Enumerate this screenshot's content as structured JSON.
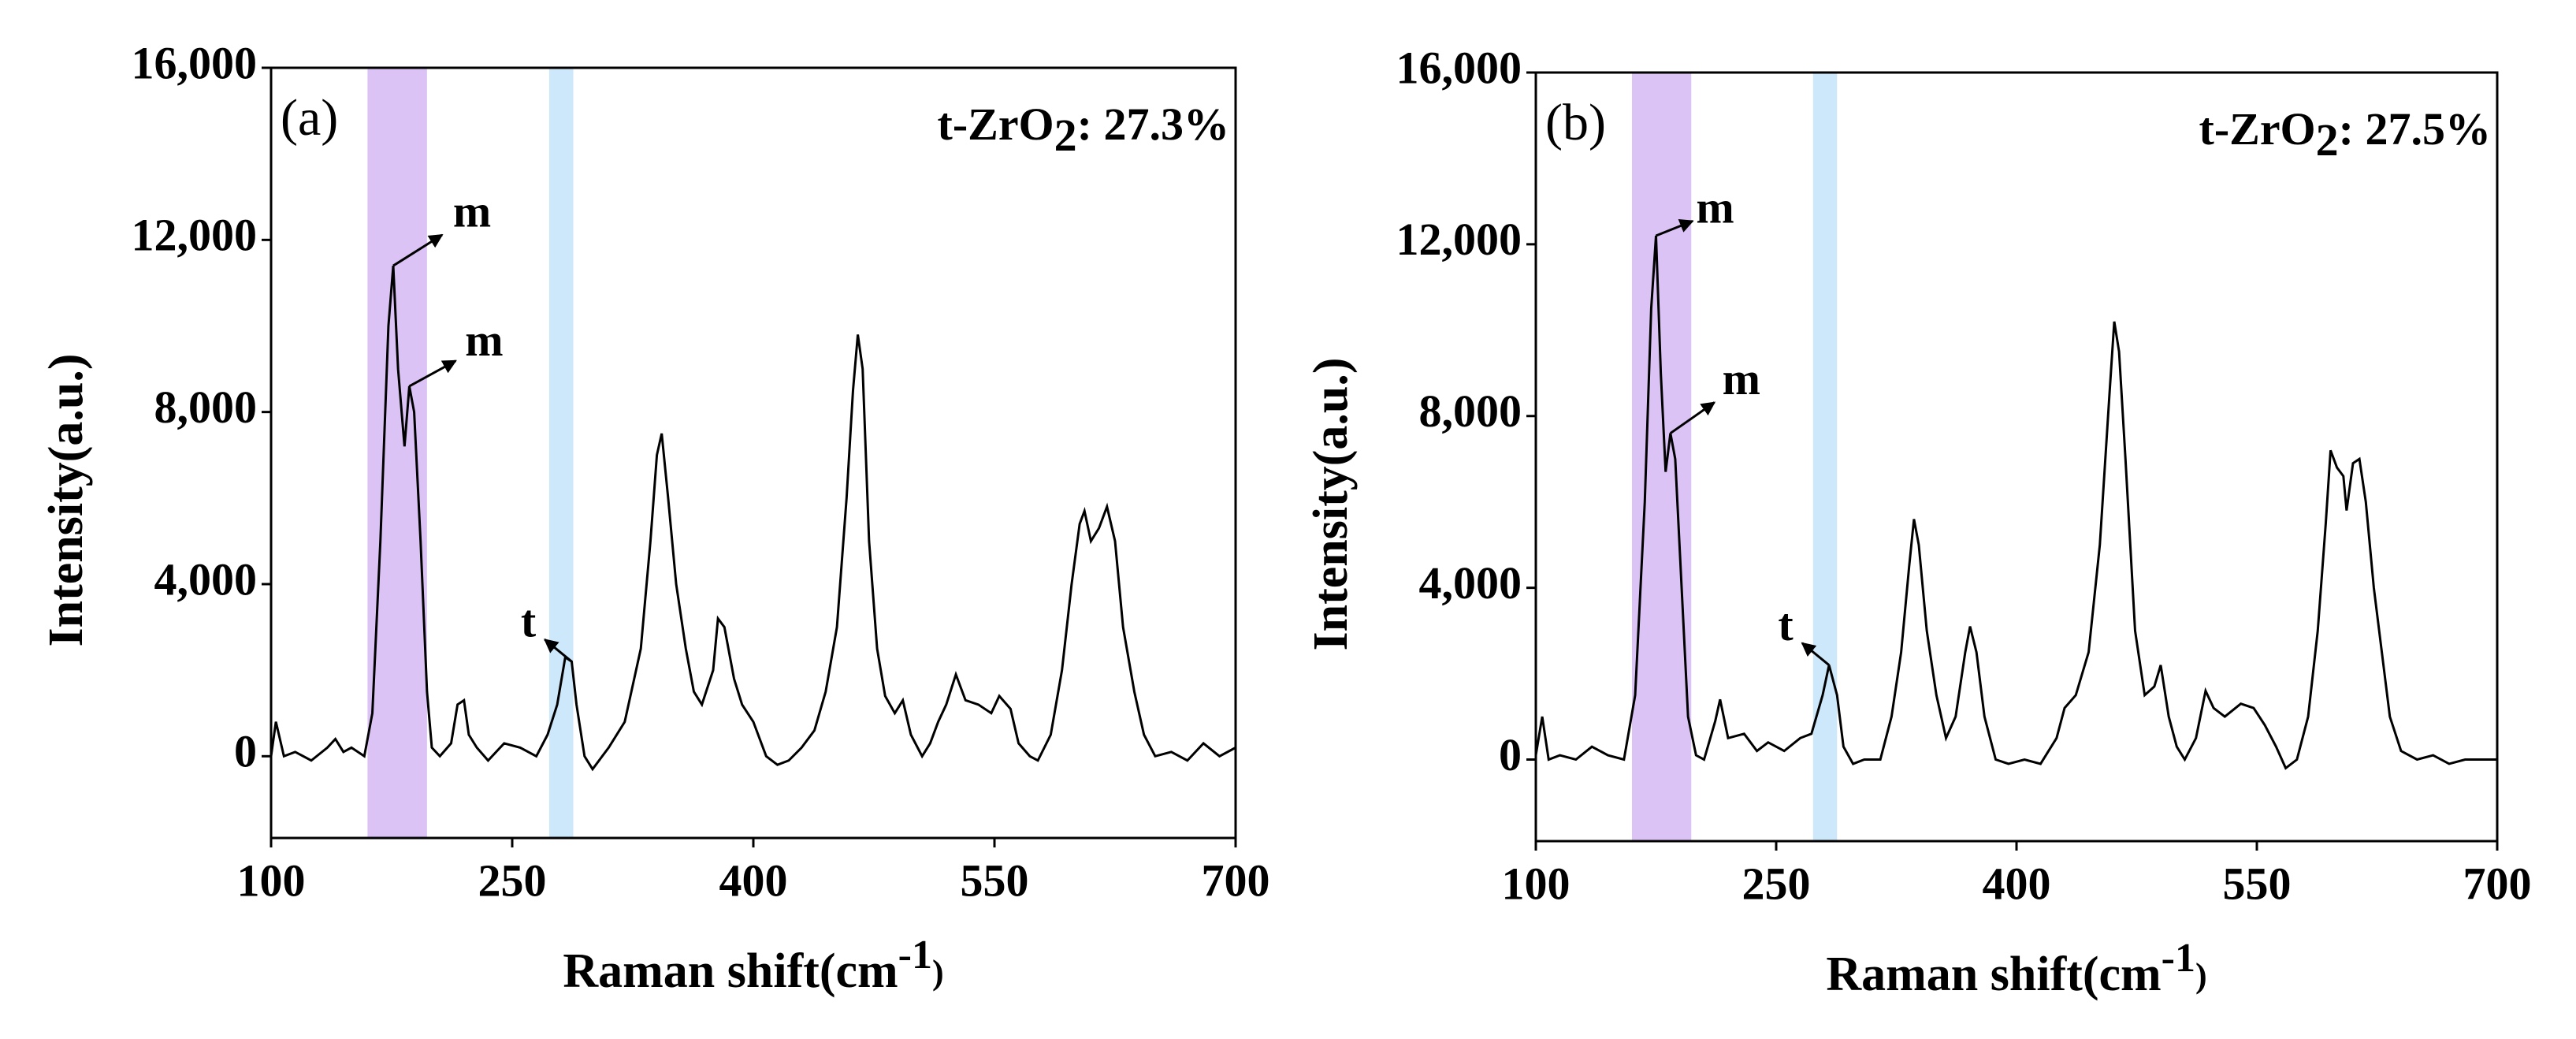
{
  "chart_data": [
    {
      "type": "line",
      "panel_label": "(a)",
      "label_parts": [
        "t-ZrO",
        "2",
        ": 27.3%"
      ],
      "xlabel_parts": [
        "Raman shift",
        "(cm",
        "-1",
        ")"
      ],
      "ylabel": "Intensity(a.u.)",
      "color": "#000000",
      "xlim": [
        100,
        700
      ],
      "xticks": [
        100,
        250,
        400,
        550,
        700
      ],
      "ylim": [
        -1900,
        16000
      ],
      "yticks": [
        0,
        {
          "value": 4000,
          "label": "4,000"
        },
        {
          "value": 8000,
          "label": "8,000"
        },
        {
          "value": 12000,
          "label": "12,000"
        },
        {
          "value": 16000,
          "label": "16,000"
        }
      ],
      "bands": [
        {
          "range": [
            160,
            197
          ],
          "color": "#dcc3f5"
        },
        {
          "range": [
            273,
            288
          ],
          "color": "#cde8fb"
        }
      ],
      "annotations": [
        {
          "text": "m",
          "x": 176,
          "y": 11400
        },
        {
          "text": "m",
          "x": 186,
          "y": 8600
        },
        {
          "text": "t",
          "x": 287,
          "y": 2200
        }
      ],
      "x": [
        100,
        103,
        108,
        115,
        125,
        135,
        140,
        145,
        150,
        158,
        163,
        168,
        173,
        176,
        179,
        183,
        186,
        189,
        193,
        197,
        200,
        205,
        212,
        216,
        220,
        223,
        228,
        235,
        245,
        255,
        265,
        272,
        278,
        283,
        287,
        290,
        295,
        300,
        310,
        320,
        330,
        336,
        340,
        343,
        347,
        352,
        358,
        363,
        368,
        375,
        378,
        382,
        388,
        393,
        400,
        408,
        415,
        422,
        430,
        438,
        445,
        452,
        458,
        462,
        465,
        468,
        472,
        477,
        482,
        488,
        493,
        498,
        505,
        510,
        515,
        520,
        526,
        532,
        540,
        548,
        553,
        560,
        565,
        572,
        577,
        585,
        592,
        598,
        603,
        606,
        610,
        615,
        620,
        625,
        630,
        637,
        643,
        650,
        660,
        670,
        680,
        690,
        700
      ],
      "values": [
        0,
        800,
        0,
        100,
        -100,
        200,
        400,
        100,
        200,
        0,
        1000,
        5000,
        10000,
        11400,
        9000,
        7200,
        8600,
        8000,
        5000,
        1500,
        200,
        0,
        300,
        1200,
        1300,
        500,
        200,
        -100,
        300,
        200,
        0,
        500,
        1200,
        2300,
        2200,
        1200,
        0,
        -300,
        200,
        800,
        2500,
        5000,
        7000,
        7500,
        6000,
        4000,
        2500,
        1500,
        1200,
        2000,
        3200,
        3000,
        1800,
        1200,
        800,
        0,
        -200,
        -100,
        200,
        600,
        1500,
        3000,
        6000,
        8500,
        9800,
        9000,
        5000,
        2500,
        1400,
        1000,
        1300,
        500,
        0,
        300,
        800,
        1200,
        1900,
        1300,
        1200,
        1000,
        1400,
        1100,
        300,
        0,
        -100,
        500,
        2000,
        4000,
        5400,
        5700,
        5000,
        5300,
        5800,
        5000,
        3000,
        1500,
        500,
        0,
        100,
        -100,
        300,
        0,
        200
      ]
    },
    {
      "type": "line",
      "panel_label": "(b)",
      "label_parts": [
        "t-ZrO",
        "2",
        ": 27.5%"
      ],
      "xlabel_parts": [
        "Raman shift",
        "(cm",
        "-1",
        ")"
      ],
      "ylabel": "Intensity(a.u.)",
      "color": "#000000",
      "xlim": [
        100,
        700
      ],
      "xticks": [
        100,
        250,
        400,
        550,
        700
      ],
      "ylim": [
        -1900,
        16000
      ],
      "yticks": [
        0,
        {
          "value": 4000,
          "label": "4,000"
        },
        {
          "value": 8000,
          "label": "8,000"
        },
        {
          "value": 12000,
          "label": "12,000"
        },
        {
          "value": 16000,
          "label": "16,000"
        }
      ],
      "bands": [
        {
          "range": [
            160,
            197
          ],
          "color": "#dcc3f5"
        },
        {
          "range": [
            273,
            288
          ],
          "color": "#cde8fb"
        }
      ],
      "annotations": [
        {
          "text": "m",
          "x": 175,
          "y": 12200
        },
        {
          "text": "m",
          "x": 184,
          "y": 7600
        },
        {
          "text": "t",
          "x": 283,
          "y": 2200
        }
      ],
      "x": [
        100,
        104,
        108,
        115,
        125,
        135,
        145,
        155,
        162,
        168,
        172,
        175,
        178,
        181,
        184,
        187,
        191,
        195,
        200,
        205,
        212,
        215,
        220,
        230,
        238,
        245,
        255,
        265,
        272,
        279,
        283,
        288,
        292,
        298,
        305,
        315,
        322,
        328,
        333,
        336,
        339,
        344,
        350,
        356,
        362,
        368,
        371,
        375,
        380,
        387,
        395,
        405,
        415,
        425,
        430,
        437,
        445,
        452,
        458,
        461,
        464,
        468,
        474,
        480,
        486,
        490,
        495,
        500,
        505,
        512,
        518,
        523,
        530,
        540,
        548,
        555,
        562,
        568,
        575,
        582,
        588,
        593,
        596,
        600,
        604,
        606,
        610,
        614,
        618,
        623,
        628,
        633,
        640,
        650,
        660,
        670,
        680,
        690,
        700
      ],
      "values": [
        100,
        1000,
        0,
        100,
        0,
        300,
        100,
        0,
        1500,
        6000,
        10500,
        12200,
        9000,
        6700,
        7600,
        7000,
        4000,
        1000,
        100,
        0,
        900,
        1400,
        500,
        600,
        200,
        400,
        200,
        500,
        600,
        1500,
        2200,
        1500,
        300,
        -100,
        0,
        0,
        1000,
        2500,
        4500,
        5600,
        5000,
        3000,
        1500,
        500,
        1000,
        2500,
        3100,
        2500,
        1000,
        0,
        -100,
        0,
        -100,
        500,
        1200,
        1500,
        2500,
        5000,
        8500,
        10200,
        9500,
        7000,
        3000,
        1500,
        1700,
        2200,
        1000,
        300,
        0,
        500,
        1600,
        1200,
        1000,
        1300,
        1200,
        800,
        300,
        -200,
        0,
        1000,
        3000,
        5500,
        7200,
        6800,
        6600,
        5800,
        6900,
        7000,
        6000,
        4000,
        2500,
        1000,
        200,
        0,
        100,
        -100,
        0,
        0,
        0
      ]
    }
  ]
}
